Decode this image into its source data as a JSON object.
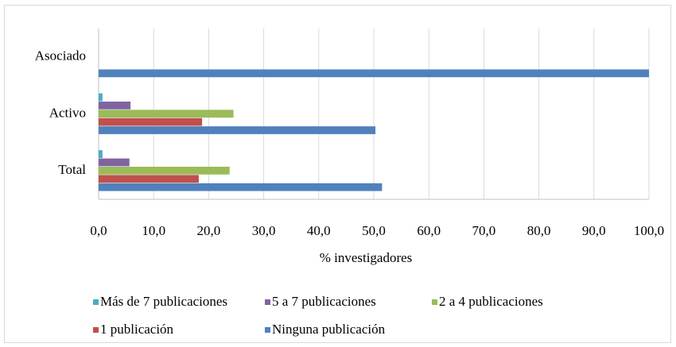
{
  "chart_data": {
    "type": "hbar",
    "categories": [
      "Asociado",
      "Activo",
      "Total"
    ],
    "series": [
      {
        "name": "Más de 7 publicaciones",
        "color": "#4bacc6",
        "values": [
          0,
          0.7,
          0.7
        ]
      },
      {
        "name": "5 a 7 publicaciones",
        "color": "#8064a2",
        "values": [
          0,
          5.8,
          5.6
        ]
      },
      {
        "name": "2 a 4 publicaciones",
        "color": "#9bbb59",
        "values": [
          0,
          24.5,
          23.8
        ]
      },
      {
        "name": "1 publicación",
        "color": "#c0504d",
        "values": [
          0,
          18.8,
          18.2
        ]
      },
      {
        "name": "Ninguna publicación",
        "color": "#4f81bd",
        "values": [
          100,
          50.3,
          51.5
        ]
      }
    ],
    "xlabel": "% investigadores",
    "xlim": [
      0,
      100
    ],
    "xticks": [
      {
        "value": 0,
        "label": "0,0"
      },
      {
        "value": 10,
        "label": "10,0"
      },
      {
        "value": 20,
        "label": "20,0"
      },
      {
        "value": 30,
        "label": "30,0"
      },
      {
        "value": 40,
        "label": "40,0"
      },
      {
        "value": 50,
        "label": "50,0"
      },
      {
        "value": 60,
        "label": "60,0"
      },
      {
        "value": 70,
        "label": "70,0"
      },
      {
        "value": 80,
        "label": "80,0"
      },
      {
        "value": 90,
        "label": "90,0"
      },
      {
        "value": 100,
        "label": "100,0"
      }
    ],
    "grid": true,
    "legend": "bottom"
  }
}
